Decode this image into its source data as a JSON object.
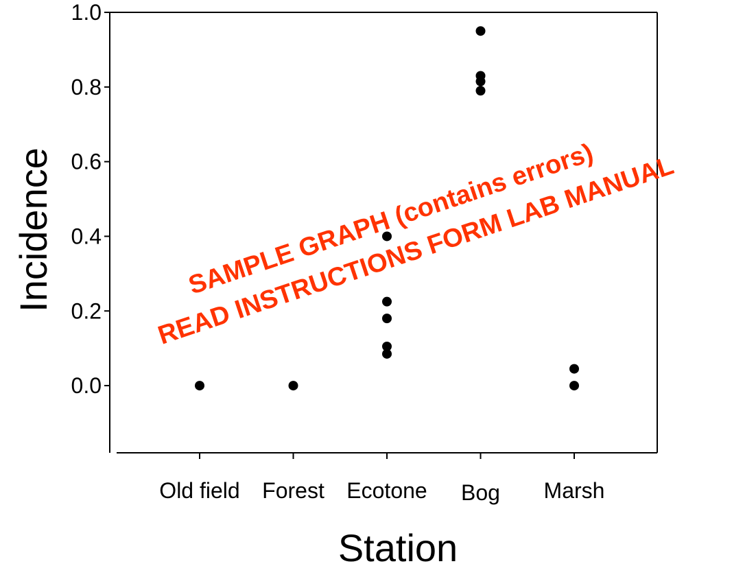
{
  "chart_data": {
    "type": "scatter",
    "xlabel": "Station",
    "ylabel": "Incidence",
    "categories": [
      "Old field",
      "Forest",
      "Ecotone",
      "Bog",
      "Marsh"
    ],
    "ylim": [
      -0.18,
      1.0
    ],
    "yticks": [
      "0.0",
      "0.2",
      "0.4",
      "0.6",
      "0.8",
      "1.0"
    ],
    "grid": false,
    "points": [
      {
        "x": "Old field",
        "y": 0.0
      },
      {
        "x": "Forest",
        "y": 0.0
      },
      {
        "x": "Ecotone",
        "y": 0.4
      },
      {
        "x": "Ecotone",
        "y": 0.225
      },
      {
        "x": "Ecotone",
        "y": 0.18
      },
      {
        "x": "Ecotone",
        "y": 0.105
      },
      {
        "x": "Ecotone",
        "y": 0.085
      },
      {
        "x": "Bog",
        "y": 0.95
      },
      {
        "x": "Bog",
        "y": 0.83
      },
      {
        "x": "Bog",
        "y": 0.815
      },
      {
        "x": "Bog",
        "y": 0.79
      },
      {
        "x": "Marsh",
        "y": 0.045
      },
      {
        "x": "Marsh",
        "y": 0.0
      }
    ],
    "point_color": "#000000"
  },
  "watermark": {
    "line1": "SAMPLE GRAPH (contains errors)",
    "line2": "READ INSTRUCTIONS FORM LAB MANUAL",
    "color": "#ff3300"
  }
}
